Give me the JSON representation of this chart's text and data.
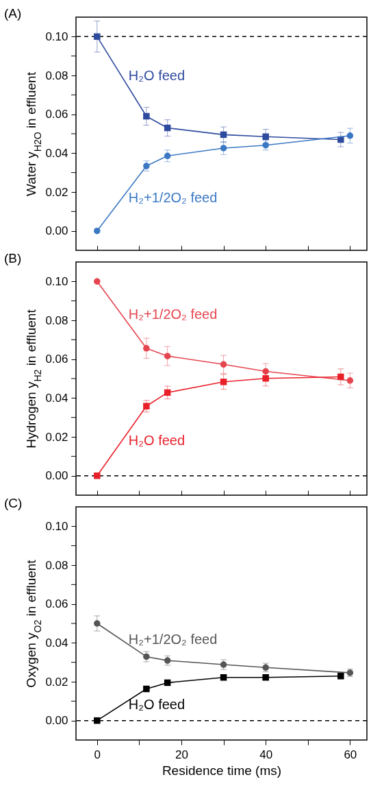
{
  "chart_data": [
    {
      "type": "line",
      "title": "(A)",
      "ylabel": "Water y$_{H2O}$ in effluent",
      "xlim": [
        -5,
        64
      ],
      "ylim": [
        -0.01,
        0.11
      ],
      "xticks": [
        0,
        {
          "value": 10,
          "label": null
        },
        {
          "value": 20,
          "label": null
        },
        {
          "value": 30,
          "label": null
        },
        {
          "value": 40,
          "label": null
        },
        {
          "value": 50,
          "label": null
        },
        {
          "value": 60,
          "label": null
        }
      ],
      "yticks": [
        {
          "value": 0,
          "label": "0.00"
        },
        {
          "value": 0.01,
          "label": null
        },
        {
          "value": 0.02,
          "label": "0.02"
        },
        {
          "value": 0.03,
          "label": null
        },
        {
          "value": 0.04,
          "label": "0.04"
        },
        {
          "value": 0.05,
          "label": null
        },
        {
          "value": 0.06,
          "label": "0.06"
        },
        {
          "value": 0.07,
          "label": null
        },
        {
          "value": 0.08,
          "label": "0.08"
        },
        {
          "value": 0.09,
          "label": null
        },
        {
          "value": 0.1,
          "label": "0.10"
        }
      ],
      "tick_labels": "y",
      "legend": false,
      "grid": false,
      "line_style": "solid",
      "ref_lines": [
        {
          "axis": "y",
          "value": 0.1,
          "line_style": "dashed",
          "color": "#000000"
        }
      ],
      "series": [
        {
          "name": "H₂O feed",
          "color": "#2e4a9e",
          "marker": "square",
          "x": [
            0,
            11.7,
            16.7,
            30,
            40,
            57.8
          ],
          "values": [
            0.1,
            0.059,
            0.053,
            0.0495,
            0.0485,
            0.047
          ],
          "errors": [
            0.008,
            0.0046,
            0.0042,
            0.004,
            0.0038,
            0.0037
          ]
        },
        {
          "name": "H₂+1/2O₂ feed",
          "color": "#3b78c4",
          "marker": "circle",
          "x": [
            0,
            11.7,
            16.7,
            30,
            40,
            60
          ],
          "values": [
            0,
            0.0334,
            0.0386,
            0.0426,
            0.0441,
            0.049
          ],
          "errors": [
            null,
            0.0026,
            0.003,
            0.0033,
            0.0025,
            0.0038
          ]
        }
      ]
    },
    {
      "type": "line",
      "title": "(B)",
      "ylabel": "Hydrogen y$_{H2}$ in effluent",
      "xlim": [
        -5,
        64
      ],
      "ylim": [
        -0.01,
        0.11
      ],
      "xticks": [
        0,
        {
          "value": 10,
          "label": null
        },
        {
          "value": 20,
          "label": null
        },
        {
          "value": 30,
          "label": null
        },
        {
          "value": 40,
          "label": null
        },
        {
          "value": 50,
          "label": null
        },
        {
          "value": 60,
          "label": null
        }
      ],
      "yticks": [
        {
          "value": 0,
          "label": "0.00"
        },
        {
          "value": 0.01,
          "label": null
        },
        {
          "value": 0.02,
          "label": "0.02"
        },
        {
          "value": 0.03,
          "label": null
        },
        {
          "value": 0.04,
          "label": "0.04"
        },
        {
          "value": 0.05,
          "label": null
        },
        {
          "value": 0.06,
          "label": "0.06"
        },
        {
          "value": 0.07,
          "label": null
        },
        {
          "value": 0.08,
          "label": "0.08"
        },
        {
          "value": 0.09,
          "label": null
        },
        {
          "value": 0.1,
          "label": "0.10"
        }
      ],
      "tick_labels": "y",
      "legend": false,
      "grid": false,
      "line_style": "solid",
      "ref_lines": [
        {
          "axis": "y",
          "value": 0,
          "line_style": "dashed",
          "color": "#000000"
        }
      ],
      "series": [
        {
          "name": "H₂+1/2O₂ feed",
          "color": "#e5454f",
          "marker": "circle",
          "x": [
            0,
            11.7,
            16.7,
            30,
            40,
            60
          ],
          "values": [
            0.1,
            0.0656,
            0.0616,
            0.0573,
            0.0537,
            0.049
          ],
          "errors": [
            null,
            0.0052,
            0.0049,
            0.0046,
            0.004,
            0.0038
          ]
        },
        {
          "name": "H₂O feed",
          "color": "#e8202a",
          "marker": "square",
          "x": [
            0,
            11.7,
            16.7,
            30,
            40,
            57.8
          ],
          "values": [
            0,
            0.0358,
            0.0428,
            0.0483,
            0.0501,
            0.0509
          ],
          "errors": [
            null,
            0.003,
            0.0033,
            0.0038,
            0.0039,
            0.0041
          ]
        }
      ]
    },
    {
      "type": "line",
      "title": "(C)",
      "ylabel": "Oxygen y$_{O2}$ in effluent",
      "xlabel": "Residence time (ms)",
      "xlim": [
        -5,
        64
      ],
      "ylim": [
        -0.01,
        0.11
      ],
      "legend": false,
      "xticks": [
        0,
        {
          "value": 10,
          "label": null
        },
        20,
        {
          "value": 30,
          "label": null
        },
        40,
        {
          "value": 50,
          "label": null
        },
        60
      ],
      "yticks": [
        {
          "value": 0,
          "label": "0.00"
        },
        {
          "value": 0.01,
          "label": null
        },
        {
          "value": 0.02,
          "label": "0.02"
        },
        {
          "value": 0.03,
          "label": null
        },
        {
          "value": 0.04,
          "label": "0.04"
        },
        {
          "value": 0.05,
          "label": null
        },
        {
          "value": 0.06,
          "label": "0.06"
        },
        {
          "value": 0.07,
          "label": null
        },
        {
          "value": 0.08,
          "label": "0.08"
        },
        {
          "value": 0.09,
          "label": null
        },
        {
          "value": 0.1,
          "label": "0.10"
        }
      ],
      "grid": false,
      "line_style": "solid",
      "ref_lines": [
        {
          "axis": "y",
          "value": 0,
          "line_style": "dashed",
          "color": "#000000"
        }
      ],
      "series": [
        {
          "name": "H₂+1/2O₂ feed",
          "color": "#555555",
          "marker": "circle",
          "x": [
            0,
            11.7,
            16.7,
            30,
            40,
            60
          ],
          "values": [
            0.05,
            0.0329,
            0.0309,
            0.0288,
            0.0273,
            0.0246
          ],
          "errors": [
            0.0039,
            0.0026,
            0.0024,
            0.0025,
            0.0022,
            0.0019
          ]
        },
        {
          "name": "H₂O feed",
          "color": "#000000",
          "marker": "square",
          "x": [
            0,
            11.7,
            16.7,
            30,
            40,
            57.8
          ],
          "values": [
            0,
            0.0163,
            0.0195,
            0.0222,
            0.0222,
            0.0229
          ],
          "errors": [
            null,
            0.0008,
            0.0009,
            0.0012,
            0.0011,
            0.001
          ]
        }
      ]
    }
  ]
}
